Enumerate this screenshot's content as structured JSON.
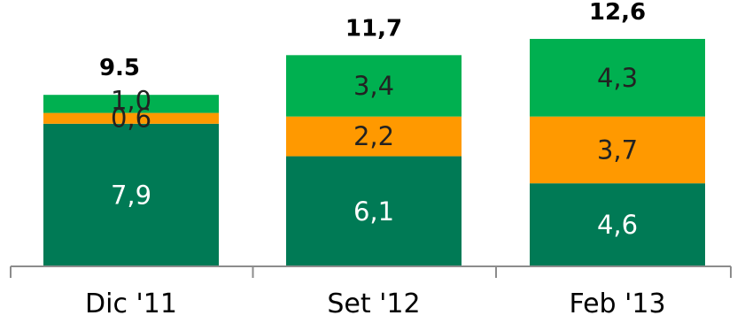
{
  "chart_data": {
    "type": "bar",
    "stacked": true,
    "categories": [
      "Dic '11",
      "Set '12",
      "Feb '13"
    ],
    "series": [
      {
        "values": [
          7.9,
          6.1,
          4.6
        ],
        "labels": [
          "7,9",
          "6,1",
          "4,6"
        ],
        "color": "#007a55",
        "label_color": "#ffffff"
      },
      {
        "values": [
          0.6,
          2.2,
          3.7
        ],
        "labels": [
          "0,6",
          "2,2",
          "3,7"
        ],
        "color": "#ff9900",
        "label_color": "#222222"
      },
      {
        "values": [
          1.0,
          3.4,
          4.3
        ],
        "labels": [
          "1,0",
          "3,4",
          "4,3"
        ],
        "color": "#00b050",
        "label_color": "#222222"
      }
    ],
    "totals": [
      9.5,
      11.7,
      12.6
    ],
    "total_labels": [
      "9.5",
      "11,7",
      "12,6"
    ],
    "title": "",
    "xlabel": "",
    "ylabel": "",
    "ylim": [
      0,
      13.5
    ],
    "grid": false,
    "legend": "none"
  }
}
